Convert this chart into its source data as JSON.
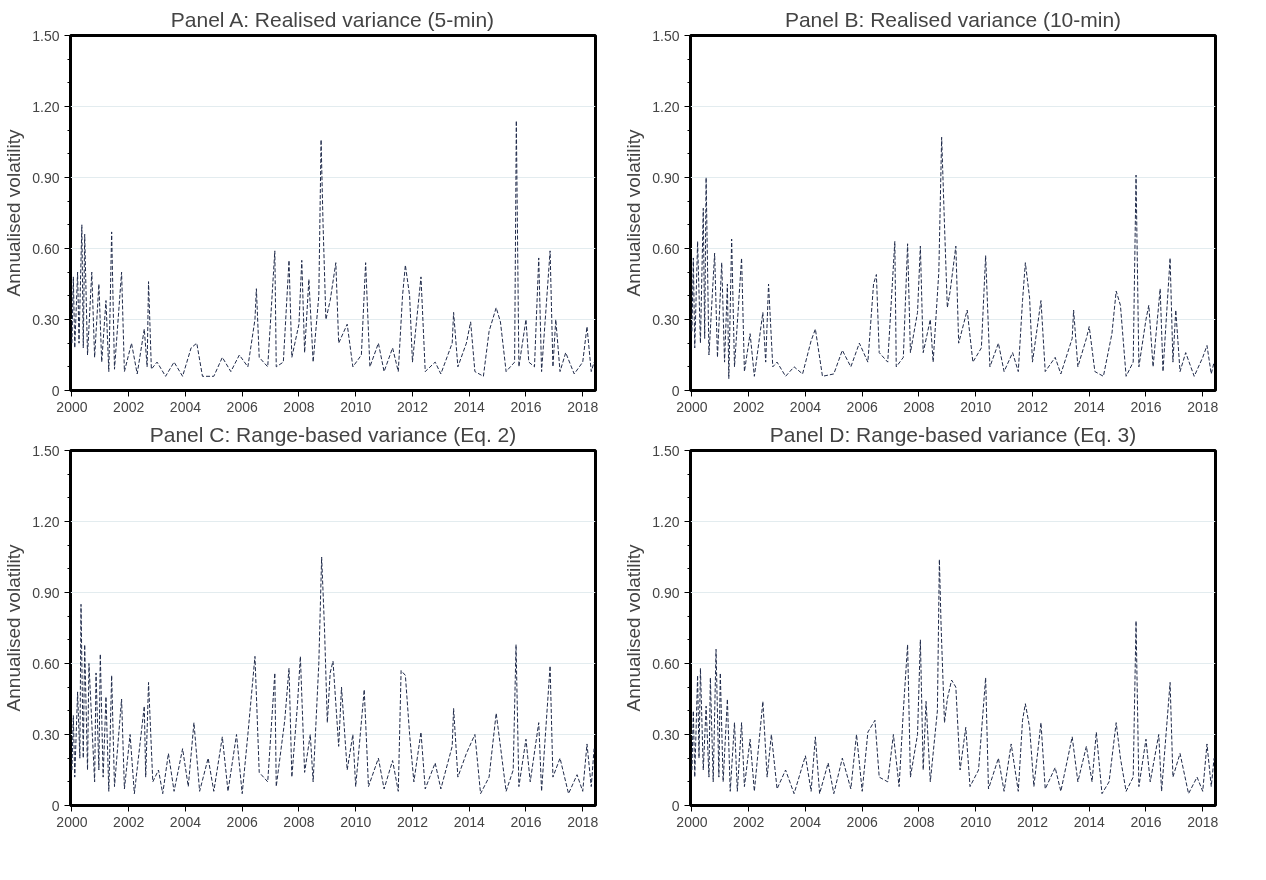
{
  "chart_data": [
    {
      "type": "line",
      "title": "Panel A: Realised variance (5-min)",
      "ylabel": "Annualised volatility",
      "xlim": [
        1999.95,
        2018.45
      ],
      "ylim": [
        0,
        1.5
      ],
      "xticks": [
        2000,
        2002,
        2004,
        2006,
        2008,
        2010,
        2012,
        2014,
        2016,
        2018
      ],
      "yticks": [
        0,
        {
          "value": 0.3,
          "label": "0.30"
        },
        {
          "value": 0.6,
          "label": "0.60"
        },
        {
          "value": 0.9,
          "label": "0.90"
        },
        {
          "value": 1.2,
          "label": "1.20"
        },
        {
          "value": 1.5,
          "label": "1.50"
        }
      ],
      "grid": "y",
      "line_style": "dashed",
      "series": [
        {
          "color": "#1f2a4a",
          "x": [
            2000.0,
            2000.05,
            2000.1,
            2000.2,
            2000.25,
            2000.35,
            2000.4,
            2000.45,
            2000.55,
            2000.7,
            2000.8,
            2000.95,
            2001.05,
            2001.2,
            2001.3,
            2001.4,
            2001.5,
            2001.75,
            2001.85,
            2002.1,
            2002.3,
            2002.55,
            2002.65,
            2002.7,
            2002.8,
            2003.0,
            2003.3,
            2003.6,
            2003.9,
            2004.2,
            2004.4,
            2004.6,
            2005.0,
            2005.3,
            2005.6,
            2005.9,
            2006.2,
            2006.45,
            2006.5,
            2006.6,
            2006.9,
            2007.15,
            2007.2,
            2007.45,
            2007.65,
            2007.75,
            2008.0,
            2008.1,
            2008.2,
            2008.35,
            2008.5,
            2008.7,
            2008.78,
            2008.85,
            2008.95,
            2009.1,
            2009.3,
            2009.4,
            2009.7,
            2009.9,
            2010.2,
            2010.35,
            2010.5,
            2010.8,
            2011.0,
            2011.3,
            2011.5,
            2011.65,
            2011.75,
            2011.9,
            2012.0,
            2012.3,
            2012.45,
            2012.8,
            2013.0,
            2013.4,
            2013.45,
            2013.6,
            2013.9,
            2014.05,
            2014.2,
            2014.5,
            2014.7,
            2014.95,
            2015.1,
            2015.3,
            2015.6,
            2015.66,
            2015.75,
            2016.0,
            2016.1,
            2016.3,
            2016.45,
            2016.55,
            2016.85,
            2016.95,
            2017.05,
            2017.2,
            2017.4,
            2017.7,
            2018.0,
            2018.15,
            2018.3,
            2018.4
          ],
          "values": [
            0.2,
            0.48,
            0.18,
            0.5,
            0.2,
            0.7,
            0.18,
            0.66,
            0.15,
            0.5,
            0.14,
            0.45,
            0.12,
            0.38,
            0.08,
            0.67,
            0.09,
            0.5,
            0.08,
            0.2,
            0.07,
            0.26,
            0.1,
            0.46,
            0.09,
            0.12,
            0.06,
            0.12,
            0.06,
            0.18,
            0.2,
            0.06,
            0.06,
            0.14,
            0.08,
            0.15,
            0.1,
            0.3,
            0.43,
            0.14,
            0.1,
            0.59,
            0.1,
            0.12,
            0.55,
            0.14,
            0.28,
            0.55,
            0.16,
            0.47,
            0.12,
            0.4,
            1.06,
            0.7,
            0.3,
            0.38,
            0.54,
            0.2,
            0.28,
            0.1,
            0.15,
            0.54,
            0.1,
            0.2,
            0.08,
            0.18,
            0.08,
            0.4,
            0.53,
            0.4,
            0.12,
            0.48,
            0.08,
            0.12,
            0.07,
            0.2,
            0.33,
            0.1,
            0.2,
            0.29,
            0.08,
            0.06,
            0.25,
            0.35,
            0.29,
            0.08,
            0.12,
            1.14,
            0.1,
            0.3,
            0.12,
            0.1,
            0.56,
            0.08,
            0.59,
            0.1,
            0.3,
            0.08,
            0.16,
            0.07,
            0.12,
            0.27,
            0.08,
            0.12
          ]
        }
      ]
    },
    {
      "type": "line",
      "title": "Panel B: Realised variance (10-min)",
      "ylabel": "Annualised volatility",
      "xlim": [
        1999.95,
        2018.45
      ],
      "ylim": [
        0,
        1.5
      ],
      "xticks": [
        2000,
        2002,
        2004,
        2006,
        2008,
        2010,
        2012,
        2014,
        2016,
        2018
      ],
      "yticks": [
        0,
        {
          "value": 0.3,
          "label": "0.30"
        },
        {
          "value": 0.6,
          "label": "0.60"
        },
        {
          "value": 0.9,
          "label": "0.90"
        },
        {
          "value": 1.2,
          "label": "1.20"
        },
        {
          "value": 1.5,
          "label": "1.50"
        }
      ],
      "grid": "y",
      "line_style": "dashed",
      "series": [
        {
          "color": "#1f2a4a",
          "x": [
            2000.0,
            2000.05,
            2000.1,
            2000.2,
            2000.3,
            2000.4,
            2000.45,
            2000.5,
            2000.6,
            2000.8,
            2000.9,
            2001.05,
            2001.15,
            2001.25,
            2001.3,
            2001.4,
            2001.5,
            2001.75,
            2001.85,
            2002.05,
            2002.2,
            2002.5,
            2002.6,
            2002.7,
            2002.85,
            2003.0,
            2003.3,
            2003.6,
            2003.9,
            2004.2,
            2004.35,
            2004.6,
            2005.0,
            2005.3,
            2005.6,
            2005.9,
            2006.2,
            2006.4,
            2006.5,
            2006.6,
            2006.9,
            2007.15,
            2007.2,
            2007.45,
            2007.6,
            2007.7,
            2007.95,
            2008.05,
            2008.15,
            2008.4,
            2008.5,
            2008.7,
            2008.8,
            2008.9,
            2009.0,
            2009.1,
            2009.3,
            2009.4,
            2009.7,
            2009.9,
            2010.2,
            2010.35,
            2010.5,
            2010.8,
            2011.0,
            2011.3,
            2011.5,
            2011.65,
            2011.75,
            2011.9,
            2012.0,
            2012.3,
            2012.45,
            2012.8,
            2013.0,
            2013.4,
            2013.45,
            2013.6,
            2013.9,
            2014.0,
            2014.2,
            2014.5,
            2014.8,
            2014.95,
            2015.1,
            2015.3,
            2015.55,
            2015.65,
            2015.75,
            2016.0,
            2016.1,
            2016.25,
            2016.5,
            2016.6,
            2016.85,
            2016.95,
            2017.05,
            2017.2,
            2017.4,
            2017.7,
            2018.0,
            2018.15,
            2018.3,
            2018.4
          ],
          "values": [
            0.25,
            0.56,
            0.18,
            0.63,
            0.2,
            0.77,
            0.22,
            0.9,
            0.15,
            0.58,
            0.14,
            0.54,
            0.12,
            0.45,
            0.05,
            0.64,
            0.1,
            0.56,
            0.08,
            0.24,
            0.06,
            0.33,
            0.12,
            0.45,
            0.1,
            0.12,
            0.06,
            0.1,
            0.07,
            0.21,
            0.26,
            0.06,
            0.07,
            0.17,
            0.1,
            0.2,
            0.12,
            0.45,
            0.49,
            0.16,
            0.12,
            0.63,
            0.1,
            0.14,
            0.62,
            0.16,
            0.33,
            0.61,
            0.16,
            0.3,
            0.12,
            0.5,
            1.07,
            0.7,
            0.35,
            0.42,
            0.61,
            0.2,
            0.34,
            0.12,
            0.18,
            0.57,
            0.1,
            0.2,
            0.08,
            0.16,
            0.08,
            0.38,
            0.54,
            0.39,
            0.12,
            0.38,
            0.08,
            0.14,
            0.07,
            0.22,
            0.34,
            0.1,
            0.22,
            0.27,
            0.08,
            0.06,
            0.24,
            0.42,
            0.36,
            0.06,
            0.12,
            0.91,
            0.1,
            0.3,
            0.36,
            0.1,
            0.43,
            0.08,
            0.56,
            0.12,
            0.34,
            0.08,
            0.16,
            0.06,
            0.14,
            0.19,
            0.07,
            0.12
          ]
        }
      ]
    },
    {
      "type": "line",
      "title": "Panel C: Range-based variance (Eq. 2)",
      "ylabel": "Annualised volatility",
      "xlim": [
        1999.95,
        2018.45
      ],
      "ylim": [
        0,
        1.5
      ],
      "xticks": [
        2000,
        2002,
        2004,
        2006,
        2008,
        2010,
        2012,
        2014,
        2016,
        2018
      ],
      "yticks": [
        0,
        {
          "value": 0.3,
          "label": "0.30"
        },
        {
          "value": 0.6,
          "label": "0.60"
        },
        {
          "value": 0.9,
          "label": "0.90"
        },
        {
          "value": 1.2,
          "label": "1.20"
        },
        {
          "value": 1.5,
          "label": "1.50"
        }
      ],
      "grid": "y",
      "line_style": "dashed",
      "series": [
        {
          "color": "#1f2a4a",
          "x": [
            2000.0,
            2000.05,
            2000.1,
            2000.2,
            2000.28,
            2000.32,
            2000.4,
            2000.45,
            2000.55,
            2000.6,
            2000.8,
            2000.85,
            2000.95,
            2001.0,
            2001.1,
            2001.2,
            2001.3,
            2001.4,
            2001.5,
            2001.75,
            2001.85,
            2002.05,
            2002.2,
            2002.55,
            2002.6,
            2002.7,
            2002.85,
            2003.05,
            2003.2,
            2003.4,
            2003.6,
            2003.9,
            2004.1,
            2004.3,
            2004.5,
            2004.8,
            2005.0,
            2005.3,
            2005.5,
            2005.8,
            2006.0,
            2006.2,
            2006.45,
            2006.6,
            2006.9,
            2007.15,
            2007.2,
            2007.5,
            2007.65,
            2007.75,
            2007.95,
            2008.05,
            2008.2,
            2008.4,
            2008.5,
            2008.7,
            2008.8,
            2008.9,
            2009.0,
            2009.1,
            2009.2,
            2009.4,
            2009.5,
            2009.7,
            2009.9,
            2010.0,
            2010.3,
            2010.45,
            2010.8,
            2011.0,
            2011.3,
            2011.5,
            2011.6,
            2011.75,
            2011.9,
            2012.05,
            2012.3,
            2012.45,
            2012.8,
            2013.0,
            2013.4,
            2013.45,
            2013.6,
            2013.9,
            2014.2,
            2014.4,
            2014.7,
            2014.95,
            2015.1,
            2015.3,
            2015.55,
            2015.65,
            2015.75,
            2016.0,
            2016.15,
            2016.45,
            2016.55,
            2016.85,
            2016.95,
            2017.2,
            2017.5,
            2017.8,
            2018.0,
            2018.15,
            2018.3,
            2018.4
          ],
          "values": [
            0.15,
            0.38,
            0.12,
            0.48,
            0.2,
            0.85,
            0.2,
            0.68,
            0.15,
            0.6,
            0.1,
            0.56,
            0.15,
            0.64,
            0.12,
            0.46,
            0.06,
            0.55,
            0.08,
            0.45,
            0.07,
            0.3,
            0.05,
            0.42,
            0.12,
            0.52,
            0.1,
            0.15,
            0.05,
            0.22,
            0.06,
            0.24,
            0.08,
            0.35,
            0.06,
            0.2,
            0.06,
            0.29,
            0.06,
            0.3,
            0.05,
            0.3,
            0.63,
            0.14,
            0.1,
            0.56,
            0.08,
            0.36,
            0.58,
            0.12,
            0.43,
            0.63,
            0.14,
            0.3,
            0.1,
            0.6,
            1.05,
            0.75,
            0.35,
            0.56,
            0.61,
            0.25,
            0.5,
            0.15,
            0.3,
            0.08,
            0.49,
            0.08,
            0.2,
            0.07,
            0.19,
            0.06,
            0.57,
            0.55,
            0.3,
            0.1,
            0.31,
            0.07,
            0.18,
            0.07,
            0.25,
            0.41,
            0.12,
            0.22,
            0.3,
            0.05,
            0.12,
            0.39,
            0.25,
            0.06,
            0.15,
            0.68,
            0.08,
            0.28,
            0.1,
            0.35,
            0.06,
            0.59,
            0.12,
            0.2,
            0.05,
            0.13,
            0.06,
            0.26,
            0.08,
            0.24
          ]
        }
      ]
    },
    {
      "type": "line",
      "title": "Panel D: Range-based variance (Eq. 3)",
      "ylabel": "Annualised volatility",
      "xlim": [
        1999.95,
        2018.45
      ],
      "ylim": [
        0,
        1.5
      ],
      "xticks": [
        2000,
        2002,
        2004,
        2006,
        2008,
        2010,
        2012,
        2014,
        2016,
        2018
      ],
      "yticks": [
        0,
        {
          "value": 0.3,
          "label": "0.30"
        },
        {
          "value": 0.6,
          "label": "0.60"
        },
        {
          "value": 0.9,
          "label": "0.90"
        },
        {
          "value": 1.2,
          "label": "1.20"
        },
        {
          "value": 1.5,
          "label": "1.50"
        }
      ],
      "grid": "y",
      "line_style": "dashed",
      "series": [
        {
          "color": "#1f2a4a",
          "x": [
            2000.0,
            2000.05,
            2000.1,
            2000.2,
            2000.25,
            2000.3,
            2000.4,
            2000.5,
            2000.6,
            2000.65,
            2000.75,
            2000.85,
            2000.95,
            2001.0,
            2001.1,
            2001.25,
            2001.35,
            2001.5,
            2001.6,
            2001.75,
            2001.85,
            2002.05,
            2002.2,
            2002.5,
            2002.65,
            2002.8,
            2003.0,
            2003.3,
            2003.6,
            2004.0,
            2004.2,
            2004.35,
            2004.5,
            2004.8,
            2005.0,
            2005.3,
            2005.6,
            2005.8,
            2006.0,
            2006.2,
            2006.45,
            2006.6,
            2006.9,
            2007.1,
            2007.3,
            2007.45,
            2007.6,
            2007.7,
            2007.95,
            2008.05,
            2008.15,
            2008.25,
            2008.4,
            2008.65,
            2008.72,
            2008.78,
            2008.9,
            2009.0,
            2009.15,
            2009.3,
            2009.45,
            2009.65,
            2009.8,
            2010.1,
            2010.35,
            2010.45,
            2010.8,
            2011.0,
            2011.25,
            2011.5,
            2011.65,
            2011.75,
            2011.9,
            2012.05,
            2012.3,
            2012.45,
            2012.8,
            2013.0,
            2013.4,
            2013.6,
            2013.9,
            2014.1,
            2014.25,
            2014.45,
            2014.7,
            2014.95,
            2015.1,
            2015.3,
            2015.55,
            2015.65,
            2015.75,
            2016.0,
            2016.15,
            2016.45,
            2016.55,
            2016.85,
            2016.95,
            2017.2,
            2017.5,
            2017.8,
            2018.0,
            2018.15,
            2018.3,
            2018.4
          ],
          "values": [
            0.15,
            0.4,
            0.12,
            0.55,
            0.2,
            0.58,
            0.15,
            0.42,
            0.12,
            0.54,
            0.1,
            0.66,
            0.12,
            0.56,
            0.1,
            0.45,
            0.06,
            0.35,
            0.06,
            0.35,
            0.08,
            0.28,
            0.06,
            0.44,
            0.12,
            0.3,
            0.07,
            0.15,
            0.05,
            0.21,
            0.06,
            0.29,
            0.05,
            0.18,
            0.05,
            0.2,
            0.07,
            0.3,
            0.06,
            0.31,
            0.36,
            0.12,
            0.1,
            0.3,
            0.08,
            0.4,
            0.68,
            0.12,
            0.3,
            0.7,
            0.15,
            0.44,
            0.1,
            0.4,
            1.04,
            0.76,
            0.35,
            0.45,
            0.53,
            0.5,
            0.15,
            0.33,
            0.08,
            0.15,
            0.54,
            0.07,
            0.2,
            0.06,
            0.26,
            0.06,
            0.36,
            0.43,
            0.33,
            0.08,
            0.35,
            0.07,
            0.16,
            0.06,
            0.29,
            0.1,
            0.25,
            0.1,
            0.31,
            0.05,
            0.1,
            0.35,
            0.2,
            0.06,
            0.12,
            0.78,
            0.08,
            0.28,
            0.1,
            0.3,
            0.06,
            0.52,
            0.12,
            0.22,
            0.05,
            0.12,
            0.06,
            0.26,
            0.08,
            0.2
          ]
        }
      ]
    }
  ]
}
